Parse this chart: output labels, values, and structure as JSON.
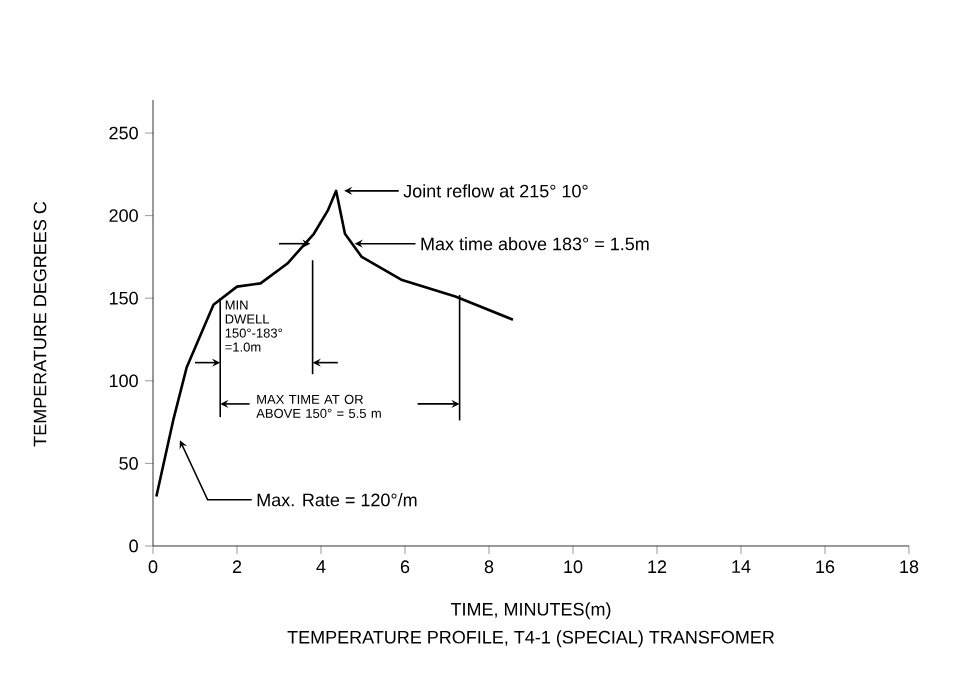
{
  "chart_data": {
    "type": "line",
    "title": "TEMPERATURE PROFILE, T4-1 (SPECIAL) TRANSFOMER",
    "xlabel": "TIME, MINUTES(m)",
    "ylabel": "TEMPERATURE DEGREES C",
    "xlim": [
      0,
      18
    ],
    "ylim": [
      0,
      270
    ],
    "xticks": [
      0,
      2,
      4,
      6,
      8,
      10,
      12,
      14,
      16,
      18
    ],
    "yticks": [
      0,
      50,
      100,
      150,
      200,
      250
    ],
    "grid": false,
    "marker": "none",
    "line_style": "solid",
    "series": [
      {
        "color": "#000000",
        "x": [
          0.08,
          0.48,
          0.8,
          1.44,
          2.0,
          2.56,
          3.2,
          3.83,
          4.16,
          4.36,
          4.57,
          4.97,
          5.93,
          7.2,
          8.57
        ],
        "values": [
          30,
          76,
          108,
          146,
          157,
          159,
          171,
          189,
          203,
          215,
          189,
          175,
          161,
          151,
          137
        ]
      }
    ],
    "annotations": [
      "Joint reflow at 215°   10°",
      "Max time above 183° = 1.5m",
      "MIN DWELL 150°-183° =1.0m",
      "MAX TIME AT OR ABOVE 150° = 5.5 m",
      "Max. Rate = 120°/m"
    ]
  }
}
